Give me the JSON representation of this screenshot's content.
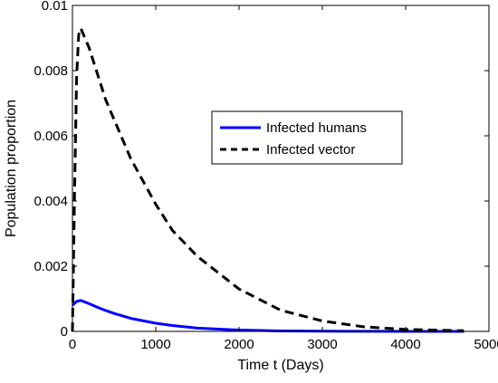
{
  "chart_data": {
    "type": "line",
    "title": "",
    "xlabel": "Time t (Days)",
    "ylabel": "Population proportion",
    "xlim": [
      0,
      5000
    ],
    "ylim": [
      0,
      0.01
    ],
    "xticks": [
      0,
      1000,
      2000,
      3000,
      4000,
      5000
    ],
    "xtick_labels": [
      "0",
      "1000",
      "2000",
      "3000",
      "4000",
      "5000"
    ],
    "yticks": [
      0,
      0.002,
      0.004,
      0.006,
      0.008,
      0.01
    ],
    "ytick_labels": [
      "0",
      "0.002",
      "0.004",
      "0.006",
      "0.008",
      "0.01"
    ],
    "grid": false,
    "legend_position": "upper-right-center",
    "series": [
      {
        "name": "Infected humans",
        "color": "#0000ff",
        "dash": "solid",
        "x": [
          0,
          50,
          100,
          200,
          300,
          400,
          500,
          700,
          1000,
          1200,
          1500,
          2000,
          2500,
          3000,
          3500,
          4000,
          4700
        ],
        "y": [
          0.0008,
          0.00092,
          0.00095,
          0.00085,
          0.00074,
          0.00064,
          0.00055,
          0.0004,
          0.00025,
          0.00018,
          0.0001,
          4e-05,
          1.5e-05,
          6e-06,
          2e-06,
          1e-06,
          5e-07
        ]
      },
      {
        "name": "Infected vector",
        "color": "#000000",
        "dash": "dashed",
        "x": [
          0,
          25,
          50,
          75,
          100,
          200,
          300,
          400,
          500,
          700,
          1000,
          1200,
          1500,
          2000,
          2500,
          3000,
          3500,
          4000,
          4700
        ],
        "y": [
          0.0,
          0.0042,
          0.0078,
          0.0091,
          0.0093,
          0.0087,
          0.0079,
          0.0071,
          0.0065,
          0.0053,
          0.0039,
          0.0031,
          0.0023,
          0.0013,
          0.00065,
          0.00032,
          0.00014,
          6e-05,
          2e-05
        ]
      }
    ]
  }
}
